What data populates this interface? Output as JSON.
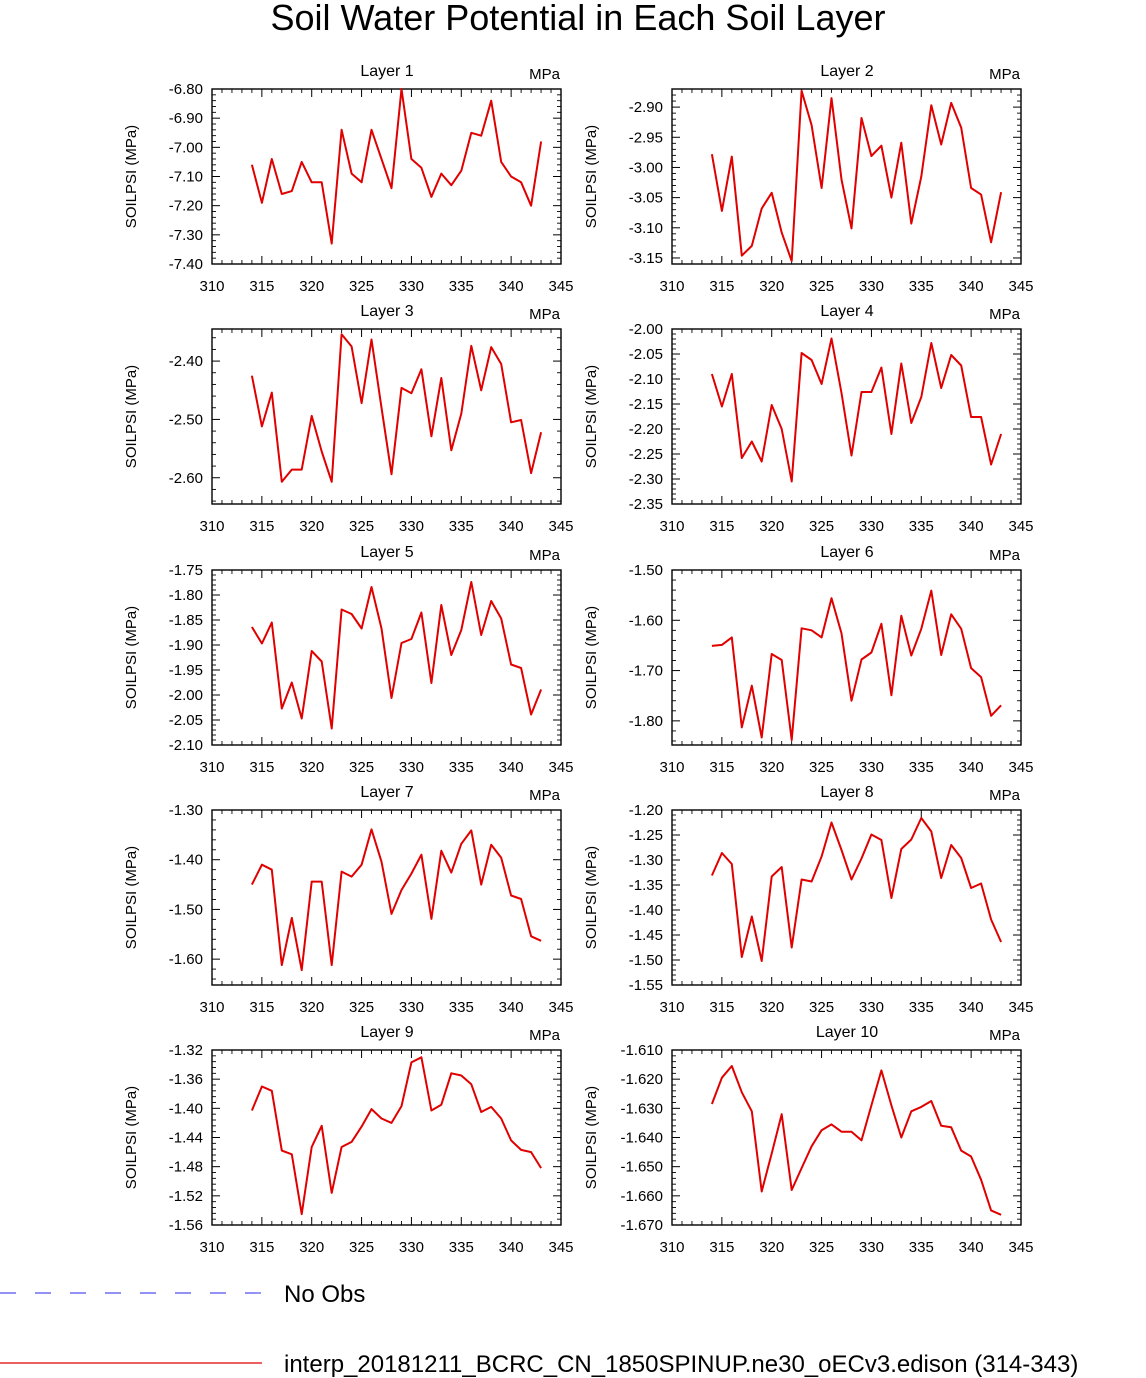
{
  "figure_title": "Soil Water Potential in Each Soil Layer",
  "legend": {
    "entries": [
      {
        "label": "No Obs",
        "color": "#5050f0",
        "style": "dashed"
      },
      {
        "label": "interp_20181211_BCRC_CN_1850SPINUP.ne30_oECv3.edison (314-343)",
        "color": "#e00000",
        "style": "solid"
      }
    ]
  },
  "chart_data": [
    {
      "type": "line",
      "title": "Layer 1",
      "unit": "MPa",
      "ylabel": "SOILPSI  (MPa)",
      "xlim": [
        310,
        345
      ],
      "xticks": [
        310,
        315,
        320,
        325,
        330,
        335,
        340,
        345
      ],
      "ylim": [
        -7.4,
        -6.8
      ],
      "yticks": [
        -6.8,
        -6.9,
        -7.0,
        -7.1,
        -7.2,
        -7.3,
        -7.4
      ],
      "ytick_decimals": 2,
      "yminor": 4,
      "series": [
        {
          "color": "#e00000",
          "x": [
            314,
            315,
            316,
            317,
            318,
            319,
            320,
            321,
            322,
            323,
            324,
            325,
            326,
            327,
            328,
            329,
            330,
            331,
            332,
            333,
            334,
            335,
            336,
            337,
            338,
            339,
            340,
            341,
            342,
            343
          ],
          "y": [
            -7.06,
            -7.19,
            -7.04,
            -7.16,
            -7.15,
            -7.05,
            -7.12,
            -7.12,
            -7.33,
            -6.94,
            -7.09,
            -7.12,
            -6.94,
            -7.04,
            -7.14,
            -6.8,
            -7.04,
            -7.07,
            -7.17,
            -7.09,
            -7.13,
            -7.08,
            -6.95,
            -6.96,
            -6.84,
            -7.05,
            -7.1,
            -7.12,
            -7.2,
            -6.98
          ]
        }
      ]
    },
    {
      "type": "line",
      "title": "Layer 2",
      "unit": "MPa",
      "ylabel": "SOILPSI  (MPa)",
      "xlim": [
        310,
        345
      ],
      "xticks": [
        310,
        315,
        320,
        325,
        330,
        335,
        340,
        345
      ],
      "ylim": [
        -3.16,
        -2.87
      ],
      "yticks": [
        -2.9,
        -2.95,
        -3.0,
        -3.05,
        -3.1,
        -3.15
      ],
      "ytick_decimals": 2,
      "yminor": 4,
      "series": [
        {
          "color": "#e00000",
          "x": [
            314,
            315,
            316,
            317,
            318,
            319,
            320,
            321,
            322,
            323,
            324,
            325,
            326,
            327,
            328,
            329,
            330,
            331,
            332,
            333,
            334,
            335,
            336,
            337,
            338,
            339,
            340,
            341,
            342,
            343
          ],
          "y": [
            -2.978,
            -3.072,
            -2.982,
            -3.146,
            -3.13,
            -3.068,
            -3.042,
            -3.108,
            -3.155,
            -2.873,
            -2.93,
            -3.034,
            -2.885,
            -3.02,
            -3.101,
            -2.918,
            -2.981,
            -2.964,
            -3.05,
            -2.959,
            -3.093,
            -3.015,
            -2.897,
            -2.962,
            -2.893,
            -2.934,
            -3.034,
            -3.045,
            -3.124,
            -3.041
          ]
        }
      ]
    },
    {
      "type": "line",
      "title": "Layer 3",
      "unit": "MPa",
      "ylabel": "SOILPSI  (MPa)",
      "xlim": [
        310,
        345
      ],
      "xticks": [
        310,
        315,
        320,
        325,
        330,
        335,
        340,
        345
      ],
      "ylim": [
        -2.645,
        -2.345
      ],
      "yticks": [
        -2.4,
        -2.5,
        -2.6
      ],
      "ytick_decimals": 2,
      "yminor": 4,
      "series": [
        {
          "color": "#e00000",
          "x": [
            314,
            315,
            316,
            317,
            318,
            319,
            320,
            321,
            322,
            323,
            324,
            325,
            326,
            327,
            328,
            329,
            330,
            331,
            332,
            333,
            334,
            335,
            336,
            337,
            338,
            339,
            340,
            341,
            342,
            343
          ],
          "y": [
            -2.425,
            -2.512,
            -2.454,
            -2.607,
            -2.586,
            -2.586,
            -2.494,
            -2.555,
            -2.607,
            -2.354,
            -2.375,
            -2.472,
            -2.363,
            -2.48,
            -2.594,
            -2.446,
            -2.455,
            -2.414,
            -2.529,
            -2.429,
            -2.553,
            -2.49,
            -2.374,
            -2.45,
            -2.376,
            -2.405,
            -2.505,
            -2.501,
            -2.592,
            -2.522
          ]
        }
      ]
    },
    {
      "type": "line",
      "title": "Layer 4",
      "unit": "MPa",
      "ylabel": "SOILPSI  (MPa)",
      "xlim": [
        310,
        345
      ],
      "xticks": [
        310,
        315,
        320,
        325,
        330,
        335,
        340,
        345
      ],
      "ylim": [
        -2.35,
        -2.0
      ],
      "yticks": [
        -2.0,
        -2.05,
        -2.1,
        -2.15,
        -2.2,
        -2.25,
        -2.3,
        -2.35
      ],
      "ytick_decimals": 2,
      "yminor": 4,
      "series": [
        {
          "color": "#e00000",
          "x": [
            314,
            315,
            316,
            317,
            318,
            319,
            320,
            321,
            322,
            323,
            324,
            325,
            326,
            327,
            328,
            329,
            330,
            331,
            332,
            333,
            334,
            335,
            336,
            337,
            338,
            339,
            340,
            341,
            342,
            343
          ],
          "y": [
            -2.09,
            -2.155,
            -2.09,
            -2.258,
            -2.225,
            -2.265,
            -2.152,
            -2.2,
            -2.305,
            -2.048,
            -2.062,
            -2.11,
            -2.019,
            -2.128,
            -2.253,
            -2.126,
            -2.126,
            -2.077,
            -2.21,
            -2.069,
            -2.188,
            -2.136,
            -2.028,
            -2.118,
            -2.052,
            -2.073,
            -2.176,
            -2.176,
            -2.271,
            -2.21
          ]
        }
      ]
    },
    {
      "type": "line",
      "title": "Layer 5",
      "unit": "MPa",
      "ylabel": "SOILPSI  (MPa)",
      "xlim": [
        310,
        345
      ],
      "xticks": [
        310,
        315,
        320,
        325,
        330,
        335,
        340,
        345
      ],
      "ylim": [
        -2.1,
        -1.75
      ],
      "yticks": [
        -1.75,
        -1.8,
        -1.85,
        -1.9,
        -1.95,
        -2.0,
        -2.05,
        -2.1
      ],
      "ytick_decimals": 2,
      "yminor": 4,
      "series": [
        {
          "color": "#e00000",
          "x": [
            314,
            315,
            316,
            317,
            318,
            319,
            320,
            321,
            322,
            323,
            324,
            325,
            326,
            327,
            328,
            329,
            330,
            331,
            332,
            333,
            334,
            335,
            336,
            337,
            338,
            339,
            340,
            341,
            342,
            343
          ],
          "y": [
            -1.864,
            -1.897,
            -1.855,
            -2.027,
            -1.975,
            -2.047,
            -1.912,
            -1.933,
            -2.067,
            -1.829,
            -1.838,
            -1.867,
            -1.784,
            -1.867,
            -2.006,
            -1.896,
            -1.888,
            -1.835,
            -1.976,
            -1.82,
            -1.92,
            -1.87,
            -1.774,
            -1.88,
            -1.812,
            -1.847,
            -1.939,
            -1.946,
            -2.039,
            -1.989
          ]
        }
      ]
    },
    {
      "type": "line",
      "title": "Layer 6",
      "unit": "MPa",
      "ylabel": "SOILPSI  (MPa)",
      "xlim": [
        310,
        345
      ],
      "xticks": [
        310,
        315,
        320,
        325,
        330,
        335,
        340,
        345
      ],
      "ylim": [
        -1.848,
        -1.5
      ],
      "yticks": [
        -1.5,
        -1.6,
        -1.7,
        -1.8
      ],
      "ytick_decimals": 2,
      "yminor": 4,
      "series": [
        {
          "color": "#e00000",
          "x": [
            314,
            315,
            316,
            317,
            318,
            319,
            320,
            321,
            322,
            323,
            324,
            325,
            326,
            327,
            328,
            329,
            330,
            331,
            332,
            333,
            334,
            335,
            336,
            337,
            338,
            339,
            340,
            341,
            342,
            343
          ],
          "y": [
            -1.651,
            -1.649,
            -1.634,
            -1.813,
            -1.73,
            -1.833,
            -1.667,
            -1.679,
            -1.838,
            -1.616,
            -1.62,
            -1.634,
            -1.556,
            -1.626,
            -1.76,
            -1.678,
            -1.664,
            -1.607,
            -1.749,
            -1.591,
            -1.67,
            -1.617,
            -1.541,
            -1.669,
            -1.588,
            -1.617,
            -1.695,
            -1.713,
            -1.79,
            -1.769
          ]
        }
      ]
    },
    {
      "type": "line",
      "title": "Layer 7",
      "unit": "MPa",
      "ylabel": "SOILPSI  (MPa)",
      "xlim": [
        310,
        345
      ],
      "xticks": [
        310,
        315,
        320,
        325,
        330,
        335,
        340,
        345
      ],
      "ylim": [
        -1.652,
        -1.3
      ],
      "yticks": [
        -1.3,
        -1.4,
        -1.5,
        -1.6
      ],
      "ytick_decimals": 2,
      "yminor": 4,
      "series": [
        {
          "color": "#e00000",
          "x": [
            314,
            315,
            316,
            317,
            318,
            319,
            320,
            321,
            322,
            323,
            324,
            325,
            326,
            327,
            328,
            329,
            330,
            331,
            332,
            333,
            334,
            335,
            336,
            337,
            338,
            339,
            340,
            341,
            342,
            343
          ],
          "y": [
            -1.45,
            -1.41,
            -1.42,
            -1.612,
            -1.517,
            -1.622,
            -1.444,
            -1.444,
            -1.612,
            -1.424,
            -1.434,
            -1.41,
            -1.339,
            -1.404,
            -1.509,
            -1.461,
            -1.428,
            -1.39,
            -1.519,
            -1.382,
            -1.426,
            -1.368,
            -1.341,
            -1.45,
            -1.37,
            -1.396,
            -1.472,
            -1.479,
            -1.554,
            -1.563
          ]
        }
      ]
    },
    {
      "type": "line",
      "title": "Layer 8",
      "unit": "MPa",
      "ylabel": "SOILPSI  (MPa)",
      "xlim": [
        310,
        345
      ],
      "xticks": [
        310,
        315,
        320,
        325,
        330,
        335,
        340,
        345
      ],
      "ylim": [
        -1.55,
        -1.2
      ],
      "yticks": [
        -1.2,
        -1.25,
        -1.3,
        -1.35,
        -1.4,
        -1.45,
        -1.5,
        -1.55
      ],
      "ytick_decimals": 2,
      "yminor": 4,
      "series": [
        {
          "color": "#e00000",
          "x": [
            314,
            315,
            316,
            317,
            318,
            319,
            320,
            321,
            322,
            323,
            324,
            325,
            326,
            327,
            328,
            329,
            330,
            331,
            332,
            333,
            334,
            335,
            336,
            337,
            338,
            339,
            340,
            341,
            342,
            343
          ],
          "y": [
            -1.331,
            -1.286,
            -1.308,
            -1.494,
            -1.413,
            -1.502,
            -1.333,
            -1.314,
            -1.475,
            -1.339,
            -1.343,
            -1.293,
            -1.225,
            -1.28,
            -1.339,
            -1.297,
            -1.249,
            -1.26,
            -1.376,
            -1.278,
            -1.259,
            -1.216,
            -1.243,
            -1.336,
            -1.27,
            -1.296,
            -1.356,
            -1.347,
            -1.419,
            -1.464
          ]
        }
      ]
    },
    {
      "type": "line",
      "title": "Layer 9",
      "unit": "MPa",
      "ylabel": "SOILPSI  (MPa)",
      "xlim": [
        310,
        345
      ],
      "xticks": [
        310,
        315,
        320,
        325,
        330,
        335,
        340,
        345
      ],
      "ylim": [
        -1.56,
        -1.32
      ],
      "yticks": [
        -1.32,
        -1.36,
        -1.4,
        -1.44,
        -1.48,
        -1.52,
        -1.56
      ],
      "ytick_decimals": 2,
      "yminor": 4,
      "series": [
        {
          "color": "#e00000",
          "x": [
            314,
            315,
            316,
            317,
            318,
            319,
            320,
            321,
            322,
            323,
            324,
            325,
            326,
            327,
            328,
            329,
            330,
            331,
            332,
            333,
            334,
            335,
            336,
            337,
            338,
            339,
            340,
            341,
            342,
            343
          ],
          "y": [
            -1.403,
            -1.37,
            -1.376,
            -1.458,
            -1.463,
            -1.545,
            -1.453,
            -1.424,
            -1.516,
            -1.453,
            -1.446,
            -1.425,
            -1.401,
            -1.414,
            -1.42,
            -1.397,
            -1.337,
            -1.33,
            -1.403,
            -1.395,
            -1.352,
            -1.355,
            -1.367,
            -1.405,
            -1.398,
            -1.414,
            -1.444,
            -1.457,
            -1.46,
            -1.482
          ]
        }
      ]
    },
    {
      "type": "line",
      "title": "Layer 10",
      "unit": "MPa",
      "ylabel": "SOILPSI  (MPa)",
      "xlim": [
        310,
        345
      ],
      "xticks": [
        310,
        315,
        320,
        325,
        330,
        335,
        340,
        345
      ],
      "ylim": [
        -1.67,
        -1.61
      ],
      "yticks": [
        -1.61,
        -1.62,
        -1.63,
        -1.64,
        -1.65,
        -1.66,
        -1.67
      ],
      "ytick_decimals": 3,
      "yminor": 4,
      "series": [
        {
          "color": "#e00000",
          "x": [
            314,
            315,
            316,
            317,
            318,
            319,
            320,
            321,
            322,
            323,
            324,
            325,
            326,
            327,
            328,
            329,
            330,
            331,
            332,
            333,
            334,
            335,
            336,
            337,
            338,
            339,
            340,
            341,
            342,
            343
          ],
          "y": [
            -1.6285,
            -1.6195,
            -1.6155,
            -1.6245,
            -1.631,
            -1.6585,
            -1.6455,
            -1.632,
            -1.658,
            -1.6505,
            -1.643,
            -1.6375,
            -1.6355,
            -1.638,
            -1.638,
            -1.641,
            -1.629,
            -1.617,
            -1.629,
            -1.64,
            -1.631,
            -1.6295,
            -1.6275,
            -1.636,
            -1.6365,
            -1.6445,
            -1.6465,
            -1.6545,
            -1.665,
            -1.6665
          ]
        }
      ]
    }
  ]
}
